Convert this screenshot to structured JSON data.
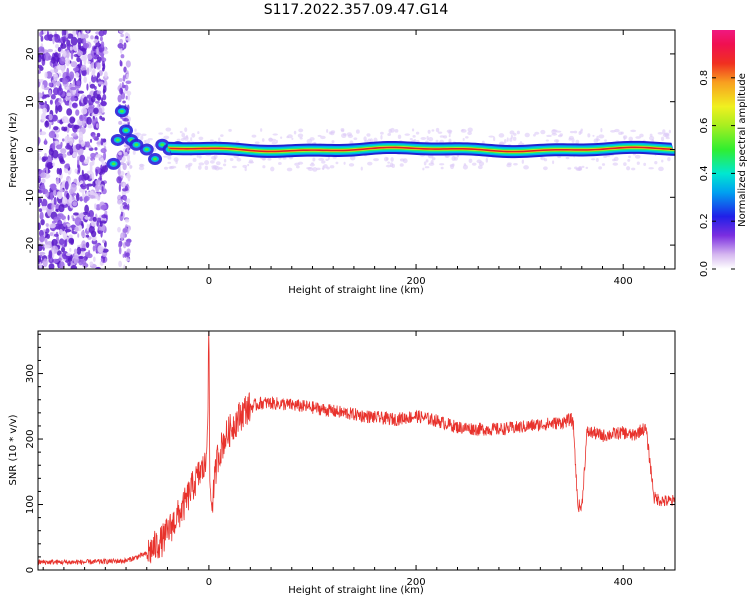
{
  "title": "S117.2022.357.09.47.G14",
  "chart_data": [
    {
      "type": "heatmap",
      "xlabel": "Height of straight line (km)",
      "ylabel": "Frequency (Hz)",
      "xlim": [
        -165,
        450
      ],
      "ylim": [
        -25,
        25
      ],
      "x_ticks": [
        0,
        200,
        400
      ],
      "y_ticks": [
        -20,
        -10,
        0,
        10,
        20
      ],
      "colorbar": {
        "label": "Normalized spectral amplitude",
        "range": [
          0,
          1
        ],
        "ticks": [
          0.0,
          0.2,
          0.4,
          0.6,
          0.8
        ],
        "colormap": "rainbow (purple-blue-cyan-green-yellow-red-magenta)"
      },
      "features": {
        "noise_region_x": [
          -165,
          -80
        ],
        "main_ridge_frequency_hz": 0,
        "ridge_peak_color": "#e02020"
      }
    },
    {
      "type": "line",
      "xlabel": "Height of straight line (km)",
      "ylabel": "SNR (10 * v/v)",
      "xlim": [
        -165,
        450
      ],
      "ylim": [
        0,
        365
      ],
      "x_ticks": [
        0,
        200,
        400
      ],
      "y_ticks": [
        0,
        100,
        200,
        300
      ],
      "color": "#e8322c",
      "x": [
        -165,
        -120,
        -80,
        -60,
        -45,
        -35,
        -25,
        -15,
        -8,
        -3,
        -1,
        0,
        1,
        3,
        8,
        15,
        25,
        35,
        50,
        60,
        80,
        100,
        130,
        160,
        180,
        200,
        220,
        240,
        260,
        280,
        300,
        320,
        340,
        350,
        352,
        356,
        360,
        365,
        370,
        380,
        400,
        410,
        418,
        422,
        430,
        440,
        450
      ],
      "y": [
        12,
        12,
        14,
        25,
        45,
        70,
        95,
        130,
        150,
        160,
        250,
        365,
        120,
        100,
        170,
        200,
        225,
        245,
        255,
        255,
        252,
        248,
        240,
        233,
        230,
        235,
        228,
        218,
        215,
        215,
        218,
        222,
        225,
        230,
        220,
        100,
        95,
        210,
        210,
        205,
        210,
        205,
        215,
        215,
        110,
        105,
        105
      ]
    }
  ]
}
